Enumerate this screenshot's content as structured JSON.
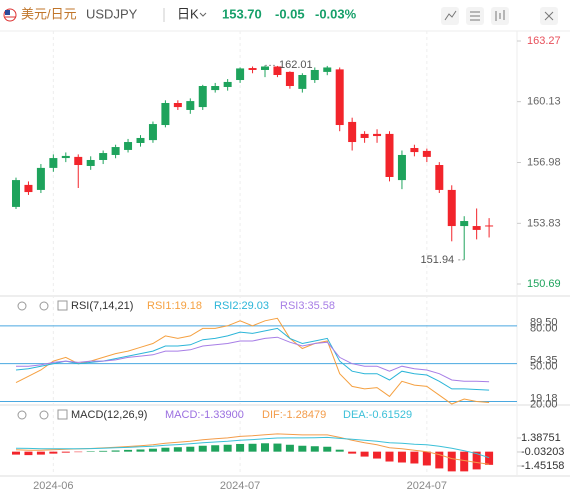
{
  "header": {
    "pair": "美元/日元",
    "symbol": "USDJPY",
    "period": "日K",
    "price": "153.70",
    "change": "-0.05",
    "change_pct": "-0.03%"
  },
  "chart_data": [
    {
      "type": "candlestick",
      "categories": [
        null,
        null,
        null,
        "2024-06",
        null,
        null,
        null,
        null,
        null,
        null,
        null,
        null,
        null,
        null,
        null,
        null,
        null,
        null,
        "2024-07",
        null,
        null,
        null,
        null,
        null,
        null,
        null,
        null,
        null,
        null,
        null,
        null,
        null,
        null,
        "2024-07",
        null,
        null,
        null,
        null,
        null
      ],
      "open": [
        154.68,
        155.82,
        155.56,
        156.7,
        157.21,
        157.27,
        156.8,
        157.11,
        157.37,
        157.63,
        157.99,
        158.14,
        158.92,
        160.06,
        159.7,
        159.85,
        160.73,
        160.89,
        161.25,
        161.87,
        161.77,
        161.95,
        161.67,
        160.79,
        161.25,
        161.67,
        161.8,
        159.08,
        158.46,
        158.46,
        158.46,
        156.07,
        157.73,
        157.58,
        156.85,
        155.56,
        153.69,
        153.69,
        153.72
      ],
      "high": [
        156.2,
        156.0,
        156.9,
        157.4,
        157.5,
        157.4,
        157.3,
        157.6,
        157.9,
        158.2,
        158.4,
        159.1,
        160.2,
        160.2,
        160.3,
        161.0,
        161.1,
        161.3,
        161.9,
        161.95,
        162.01,
        161.98,
        161.7,
        161.6,
        161.9,
        161.98,
        161.9,
        159.3,
        158.6,
        158.7,
        158.6,
        157.6,
        157.9,
        157.7,
        157.0,
        155.8,
        154.2,
        154.6,
        154.1
      ],
      "low": [
        154.57,
        155.3,
        155.4,
        156.5,
        157.0,
        155.66,
        156.6,
        156.9,
        157.2,
        157.5,
        157.8,
        158.0,
        158.8,
        159.7,
        159.5,
        159.7,
        160.6,
        160.7,
        161.1,
        161.6,
        161.4,
        161.4,
        160.8,
        160.6,
        161.1,
        161.5,
        158.6,
        157.6,
        158.0,
        158.0,
        156.0,
        155.6,
        157.3,
        157.0,
        155.4,
        152.9,
        151.94,
        153.0,
        153.1
      ],
      "close": [
        156.07,
        155.45,
        156.7,
        157.21,
        157.32,
        156.85,
        157.11,
        157.47,
        157.78,
        158.04,
        158.25,
        158.97,
        160.06,
        159.85,
        160.16,
        160.94,
        160.94,
        161.15,
        161.85,
        161.77,
        161.95,
        161.51,
        160.94,
        161.51,
        161.77,
        161.9,
        158.92,
        158.04,
        158.25,
        158.35,
        156.23,
        157.37,
        157.52,
        157.27,
        155.56,
        153.69,
        153.95,
        153.49,
        153.7
      ],
      "up_color": "#1ea35c",
      "down_color": "#f2242b",
      "ylim": [
        150.69,
        163.27
      ],
      "yticks": [
        150.69,
        153.83,
        156.98,
        160.13,
        163.27
      ],
      "ytick_colors": [
        "#1ea35c",
        "#666666",
        "#666666",
        "#666666",
        "#e8505b"
      ],
      "max_label": "162.01",
      "min_label": "151.94"
    },
    {
      "type": "line",
      "title": "RSI(7,14,21)",
      "series": [
        {
          "name": "RSI1:19.18",
          "color": "#f5a040",
          "values": [
            35,
            40,
            45,
            52,
            55,
            50,
            52,
            55,
            58,
            60,
            63,
            66,
            72,
            70,
            72,
            78,
            78,
            80,
            84,
            80,
            84,
            86,
            70,
            62,
            66,
            68,
            42,
            32,
            30,
            31,
            24,
            36,
            33,
            32,
            25,
            18,
            22,
            20,
            19.18
          ]
        },
        {
          "name": "RSI2:29.03",
          "color": "#2bb5d8",
          "values": [
            45,
            46,
            48,
            50,
            52,
            50,
            51,
            52,
            54,
            56,
            58,
            60,
            64,
            64,
            65,
            69,
            70,
            72,
            75,
            74,
            76,
            78,
            70,
            66,
            68,
            70,
            52,
            44,
            42,
            42,
            37,
            44,
            42,
            41,
            36,
            30,
            30,
            29.5,
            29.03
          ]
        },
        {
          "name": "RSI3:35.58",
          "color": "#a77ee6",
          "values": [
            48,
            48,
            49,
            51,
            52,
            51,
            52,
            52,
            53,
            55,
            56,
            57,
            60,
            60,
            61,
            64,
            65,
            66,
            68,
            68,
            70,
            71,
            67,
            64,
            66,
            67,
            55,
            50,
            48,
            48,
            44,
            48,
            46,
            45,
            42,
            37,
            36,
            36,
            35.58
          ]
        }
      ],
      "ylim": [
        18,
        100.5
      ],
      "yticks": [
        {
          "value": 20,
          "label": "20.00"
        },
        {
          "value": 50,
          "label": "50.00"
        },
        {
          "value": 80,
          "label": "80.00"
        }
      ],
      "extra_labels": [
        "19.18",
        "54.35",
        "89.50"
      ],
      "grid": true,
      "grid_color": "#4aa8e0"
    },
    {
      "type": "macd",
      "title": "MACD(12,26,9)",
      "series": [
        {
          "name": "MACD:-1.33900",
          "color": "#9b6fe0",
          "kind": "bar",
          "values": [
            -0.3,
            -0.35,
            -0.3,
            -0.2,
            -0.1,
            -0.05,
            0.02,
            0.08,
            0.12,
            0.18,
            0.22,
            0.3,
            0.4,
            0.45,
            0.5,
            0.6,
            0.65,
            0.7,
            0.78,
            0.8,
            0.85,
            0.82,
            0.7,
            0.6,
            0.55,
            0.5,
            0.2,
            -0.2,
            -0.5,
            -0.7,
            -1.0,
            -1.1,
            -1.2,
            -1.4,
            -1.7,
            -2.0,
            -2.0,
            -1.8,
            -1.339
          ]
        },
        {
          "name": "DIF:-1.28479",
          "color": "#f39c4a",
          "kind": "line",
          "values": [
            0.2,
            0.15,
            0.15,
            0.2,
            0.25,
            0.28,
            0.32,
            0.38,
            0.45,
            0.52,
            0.6,
            0.7,
            0.85,
            0.95,
            1.05,
            1.2,
            1.3,
            1.4,
            1.55,
            1.62,
            1.72,
            1.8,
            1.75,
            1.7,
            1.7,
            1.7,
            1.45,
            1.15,
            0.9,
            0.7,
            0.4,
            0.3,
            0.15,
            0,
            -0.3,
            -0.7,
            -0.9,
            -1.1,
            -1.28479
          ]
        },
        {
          "name": "DEA:-0.61529",
          "color": "#3cc0d8",
          "kind": "line",
          "values": [
            0.35,
            0.33,
            0.3,
            0.3,
            0.3,
            0.3,
            0.31,
            0.34,
            0.39,
            0.43,
            0.49,
            0.55,
            0.65,
            0.72,
            0.8,
            0.9,
            0.98,
            1.05,
            1.16,
            1.22,
            1.3,
            1.39,
            1.4,
            1.4,
            1.42,
            1.45,
            1.35,
            1.25,
            1.15,
            1.05,
            0.9,
            0.85,
            0.75,
            0.7,
            0.55,
            0.35,
            0.1,
            -0.2,
            -0.61529
          ]
        }
      ],
      "up_color": "#1ea35c",
      "down_color": "#f2242b",
      "ylim": [
        -2.47,
        4.43
      ],
      "yticks": [
        -1.45158,
        -0.03203,
        1.38751
      ]
    }
  ]
}
